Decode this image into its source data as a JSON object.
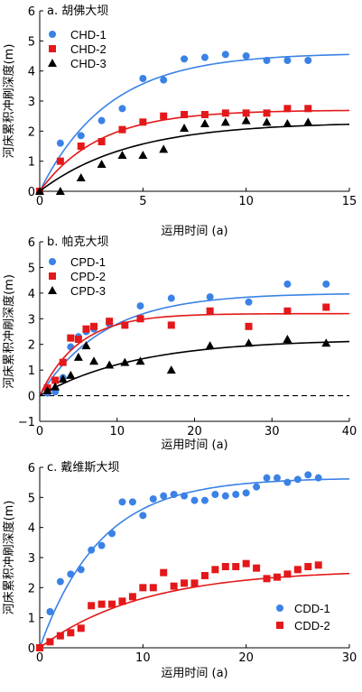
{
  "colors": {
    "blue": "#3b82e6",
    "red": "#e4181a",
    "black": "#000000",
    "axis": "#000000"
  },
  "chart_data": [
    {
      "type": "scatter",
      "title": "a. 胡佛大坝",
      "xlabel": "运用时间 (a)",
      "ylabel": "河床累积冲刷深度(m)",
      "xlim": [
        0,
        15
      ],
      "ylim": [
        0,
        6
      ],
      "xticks": [
        0,
        5,
        10,
        15
      ],
      "yticks": [
        0,
        1,
        2,
        3,
        4,
        5,
        6
      ],
      "tick_labels_x": [
        "0",
        "5",
        "10",
        "15"
      ],
      "tick_labels_y": [
        "0",
        "1",
        "2",
        "3",
        "4",
        "5",
        "6"
      ],
      "legend": "top-left",
      "zero_line": false,
      "series": [
        {
          "name": "CHD-1",
          "marker": "circle",
          "color": "#3b82e6",
          "points": [
            [
              0,
              0
            ],
            [
              1,
              1.6
            ],
            [
              2,
              1.85
            ],
            [
              3,
              2.35
            ],
            [
              4,
              2.75
            ],
            [
              5,
              3.75
            ],
            [
              6,
              3.7
            ],
            [
              7,
              4.4
            ],
            [
              8,
              4.45
            ],
            [
              9,
              4.55
            ],
            [
              10,
              4.5
            ],
            [
              11,
              4.35
            ],
            [
              12,
              4.35
            ],
            [
              13,
              4.35
            ]
          ],
          "fit": {
            "a": 4.6,
            "k": 0.3
          }
        },
        {
          "name": "CHD-2",
          "marker": "square",
          "color": "#e4181a",
          "points": [
            [
              0,
              0
            ],
            [
              1,
              1.0
            ],
            [
              2,
              1.5
            ],
            [
              3,
              1.65
            ],
            [
              4,
              2.05
            ],
            [
              5,
              2.3
            ],
            [
              6,
              2.5
            ],
            [
              7,
              2.55
            ],
            [
              8,
              2.55
            ],
            [
              9,
              2.6
            ],
            [
              10,
              2.6
            ],
            [
              11,
              2.6
            ],
            [
              12,
              2.75
            ],
            [
              13,
              2.75
            ]
          ],
          "fit": {
            "a": 2.7,
            "k": 0.35
          }
        },
        {
          "name": "CHD-3",
          "marker": "triangle",
          "color": "#000000",
          "points": [
            [
              0,
              0
            ],
            [
              1,
              0
            ],
            [
              2,
              0.45
            ],
            [
              3,
              0.9
            ],
            [
              4,
              1.2
            ],
            [
              5,
              1.2
            ],
            [
              6,
              1.4
            ],
            [
              7,
              2.1
            ],
            [
              8,
              2.25
            ],
            [
              9,
              2.3
            ],
            [
              10,
              2.35
            ],
            [
              11,
              2.3
            ],
            [
              12,
              2.25
            ],
            [
              13,
              2.3
            ]
          ],
          "fit": {
            "a": 2.3,
            "k": 0.23
          }
        }
      ]
    },
    {
      "type": "scatter",
      "title": "b. 帕克大坝",
      "xlabel": "运用时间 (a)",
      "ylabel": "河床累积冲刷深度(m)",
      "xlim": [
        0,
        40
      ],
      "ylim": [
        -1,
        6
      ],
      "xticks": [
        0,
        10,
        20,
        30,
        40
      ],
      "yticks": [
        -1,
        0,
        1,
        2,
        3,
        4,
        5,
        6
      ],
      "tick_labels_x": [
        "0",
        "10",
        "20",
        "30",
        "40"
      ],
      "tick_labels_y": [
        "−1",
        "0",
        "1",
        "2",
        "3",
        "4",
        "5",
        "6"
      ],
      "legend": "top-left",
      "zero_line": true,
      "series": [
        {
          "name": "CPD-1",
          "marker": "circle",
          "color": "#3b82e6",
          "points": [
            [
              1,
              0.1
            ],
            [
              2,
              0.15
            ],
            [
              3,
              0.7
            ],
            [
              4,
              1.9
            ],
            [
              5,
              2.3
            ],
            [
              6,
              2.5
            ],
            [
              7,
              2.6
            ],
            [
              9,
              2.8
            ],
            [
              13,
              3.5
            ],
            [
              17,
              3.8
            ],
            [
              22,
              3.85
            ],
            [
              27,
              3.65
            ],
            [
              32,
              4.35
            ],
            [
              37,
              4.35
            ]
          ],
          "fit": {
            "a": 4.0,
            "k": 0.12
          }
        },
        {
          "name": "CPD-2",
          "marker": "square",
          "color": "#e4181a",
          "points": [
            [
              1,
              0.3
            ],
            [
              2,
              0.6
            ],
            [
              3,
              1.3
            ],
            [
              4,
              2.25
            ],
            [
              5,
              2.2
            ],
            [
              6,
              2.6
            ],
            [
              7,
              2.7
            ],
            [
              9,
              2.9
            ],
            [
              11,
              2.75
            ],
            [
              13,
              3.0
            ],
            [
              17,
              2.75
            ],
            [
              22,
              3.3
            ],
            [
              27,
              2.7
            ],
            [
              32,
              3.3
            ],
            [
              37,
              3.45
            ]
          ],
          "fit": {
            "a": 3.2,
            "k": 0.2
          }
        },
        {
          "name": "CPD-3",
          "marker": "triangle",
          "color": "#000000",
          "points": [
            [
              1,
              0.2
            ],
            [
              2,
              0.35
            ],
            [
              3,
              0.65
            ],
            [
              4,
              0.8
            ],
            [
              5,
              1.5
            ],
            [
              6,
              1.95
            ],
            [
              7,
              1.35
            ],
            [
              9,
              1.2
            ],
            [
              11,
              1.3
            ],
            [
              13,
              1.35
            ],
            [
              17,
              1.0
            ],
            [
              22,
              1.95
            ],
            [
              27,
              2.05
            ],
            [
              32,
              2.2
            ],
            [
              37,
              2.05
            ]
          ],
          "fit": {
            "a": 2.2,
            "k": 0.08
          }
        }
      ]
    },
    {
      "type": "scatter",
      "title": "c. 戴维斯大坝",
      "xlabel": "运用时间 (a)",
      "ylabel": "河床累积冲刷深度(m)",
      "xlim": [
        0,
        30
      ],
      "ylim": [
        0,
        6
      ],
      "xticks": [
        0,
        10,
        20,
        30
      ],
      "yticks": [
        0,
        1,
        2,
        3,
        4,
        5,
        6
      ],
      "tick_labels_x": [
        "0",
        "10",
        "20",
        "30"
      ],
      "tick_labels_y": [
        "0",
        "1",
        "2",
        "3",
        "4",
        "5",
        "6"
      ],
      "legend": "bottom-right",
      "zero_line": false,
      "series": [
        {
          "name": "CDD-1",
          "marker": "circle",
          "color": "#3b82e6",
          "points": [
            [
              0,
              0
            ],
            [
              1,
              1.2
            ],
            [
              2,
              2.2
            ],
            [
              3,
              2.45
            ],
            [
              4,
              2.6
            ],
            [
              5,
              3.25
            ],
            [
              6,
              3.4
            ],
            [
              7,
              3.8
            ],
            [
              8,
              4.85
            ],
            [
              9,
              4.85
            ],
            [
              10,
              4.4
            ],
            [
              11,
              4.95
            ],
            [
              12,
              5.05
            ],
            [
              13,
              5.1
            ],
            [
              14,
              5.05
            ],
            [
              15,
              4.9
            ],
            [
              16,
              4.9
            ],
            [
              17,
              5.1
            ],
            [
              18,
              5.05
            ],
            [
              19,
              5.1
            ],
            [
              20,
              5.15
            ],
            [
              21,
              5.35
            ],
            [
              22,
              5.65
            ],
            [
              23,
              5.65
            ],
            [
              24,
              5.5
            ],
            [
              25,
              5.6
            ],
            [
              26,
              5.75
            ],
            [
              27,
              5.65
            ]
          ],
          "fit": {
            "a": 5.65,
            "k": 0.17
          }
        },
        {
          "name": "CDD-2",
          "marker": "square",
          "color": "#e4181a",
          "points": [
            [
              0,
              0
            ],
            [
              1,
              0.2
            ],
            [
              2,
              0.4
            ],
            [
              3,
              0.5
            ],
            [
              4,
              0.65
            ],
            [
              5,
              1.4
            ],
            [
              6,
              1.45
            ],
            [
              7,
              1.45
            ],
            [
              8,
              1.55
            ],
            [
              9,
              1.7
            ],
            [
              10,
              2.0
            ],
            [
              11,
              2.0
            ],
            [
              12,
              2.5
            ],
            [
              13,
              2.05
            ],
            [
              14,
              2.15
            ],
            [
              15,
              2.15
            ],
            [
              16,
              2.4
            ],
            [
              17,
              2.6
            ],
            [
              18,
              2.7
            ],
            [
              19,
              2.7
            ],
            [
              20,
              2.8
            ],
            [
              21,
              2.65
            ],
            [
              22,
              2.3
            ],
            [
              23,
              2.35
            ],
            [
              24,
              2.45
            ],
            [
              25,
              2.6
            ],
            [
              26,
              2.7
            ],
            [
              27,
              2.75
            ]
          ],
          "fit": {
            "a": 2.6,
            "k": 0.1
          }
        }
      ]
    }
  ]
}
